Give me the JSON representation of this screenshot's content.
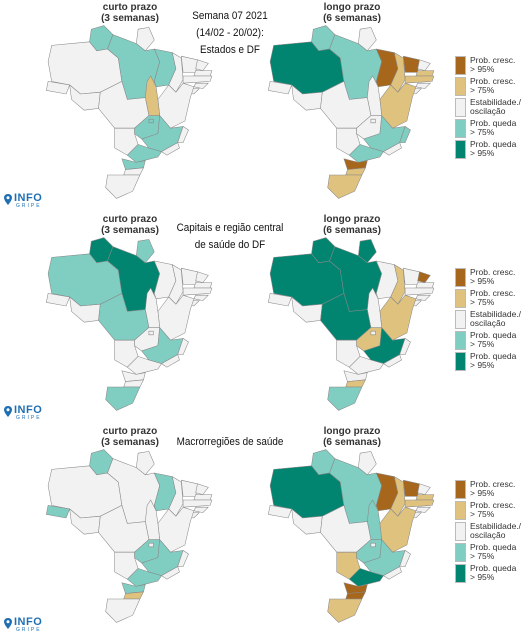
{
  "colors": {
    "inc95": "#a6661c",
    "inc75": "#e0c27f",
    "stable": "#f2f2f2",
    "dec75": "#80cdc1",
    "dec95": "#018571",
    "border": "#888888"
  },
  "map_labels": {
    "short": [
      "curto prazo",
      "(3 semanas)"
    ],
    "long": [
      "longo prazo",
      "(6 semanas)"
    ]
  },
  "panels": [
    {
      "title_lines": [
        "Semana 07 2021",
        "(14/02 - 20/02):",
        "Estados e DF"
      ]
    },
    {
      "title_lines": [
        "Capitais e região central",
        "de saúde do DF"
      ]
    },
    {
      "title_lines": [
        "Macrorregiões de saúde"
      ]
    }
  ],
  "legend": [
    {
      "key": "inc95",
      "lines": [
        "Prob. cresc.",
        "> 95%"
      ]
    },
    {
      "key": "inc75",
      "lines": [
        "Prob. cresc.",
        "> 75%"
      ]
    },
    {
      "key": "stable",
      "lines": [
        "Estabilidade./",
        "oscilação"
      ]
    },
    {
      "key": "dec75",
      "lines": [
        "Prob. queda",
        "> 75%"
      ]
    },
    {
      "key": "dec95",
      "lines": [
        "Prob. queda",
        "> 95%"
      ]
    }
  ],
  "logo": {
    "word": "INFO",
    "sub": "GRIPE"
  },
  "maps": {
    "p1_short": {
      "AM": "stable",
      "RR": "dec75",
      "AP": "stable",
      "PA": "dec75",
      "MA": "dec75",
      "PI": "stable",
      "CE": "stable",
      "RN": "stable",
      "PB": "stable",
      "PE": "stable",
      "AL": "stable",
      "SE": "stable",
      "BA": "stable",
      "TO": "inc75",
      "MT": "stable",
      "RO": "stable",
      "AC": "stable",
      "GO": "dec75",
      "DF": "dec75",
      "MS": "stable",
      "MG": "dec75",
      "ES": "stable",
      "RJ": "stable",
      "SP": "dec75",
      "PR": "dec75",
      "SC": "stable",
      "RS": "stable"
    },
    "p1_long": {
      "AM": "dec95",
      "RR": "dec75",
      "AP": "stable",
      "PA": "dec75",
      "MA": "inc95",
      "PI": "inc75",
      "CE": "inc95",
      "RN": "stable",
      "PB": "inc75",
      "PE": "inc75",
      "AL": "stable",
      "SE": "stable",
      "BA": "inc75",
      "TO": "stable",
      "MT": "stable",
      "RO": "stable",
      "AC": "stable",
      "GO": "stable",
      "DF": "stable",
      "MS": "stable",
      "MG": "dec75",
      "ES": "dec75",
      "RJ": "stable",
      "SP": "dec75",
      "PR": "inc95",
      "SC": "inc75",
      "RS": "inc75"
    },
    "p2_short": {
      "AM": "dec75",
      "RR": "dec95",
      "AP": "dec75",
      "PA": "dec95",
      "MA": "stable",
      "PI": "stable",
      "CE": "stable",
      "RN": "stable",
      "PB": "stable",
      "PE": "stable",
      "AL": "stable",
      "SE": "stable",
      "BA": "stable",
      "TO": "stable",
      "MT": "dec75",
      "RO": "stable",
      "AC": "stable",
      "GO": "stable",
      "DF": "stable",
      "MS": "stable",
      "MG": "dec75",
      "ES": "stable",
      "RJ": "stable",
      "SP": "stable",
      "PR": "stable",
      "SC": "stable",
      "RS": "dec75"
    },
    "p2_long": {
      "AM": "dec95",
      "RR": "dec95",
      "AP": "dec95",
      "PA": "dec95",
      "MA": "stable",
      "PI": "inc75",
      "CE": "stable",
      "RN": "inc95",
      "PB": "stable",
      "PE": "stable",
      "AL": "stable",
      "SE": "stable",
      "BA": "inc75",
      "TO": "stable",
      "MT": "dec95",
      "RO": "stable",
      "AC": "stable",
      "GO": "inc75",
      "DF": "stable",
      "MS": "stable",
      "MG": "dec95",
      "ES": "stable",
      "RJ": "stable",
      "SP": "stable",
      "PR": "stable",
      "SC": "inc75",
      "RS": "dec75"
    },
    "p3_short": {
      "AM": "stable",
      "RR": "dec75",
      "AP": "stable",
      "PA": "stable",
      "MA": "dec75",
      "PI": "stable",
      "CE": "stable",
      "RN": "stable",
      "PB": "stable",
      "PE": "stable",
      "AL": "stable",
      "SE": "stable",
      "BA": "stable",
      "TO": "stable",
      "MT": "stable",
      "RO": "stable",
      "AC": "dec75",
      "GO": "dec75",
      "DF": "stable",
      "MS": "stable",
      "MG": "dec75",
      "ES": "stable",
      "RJ": "stable",
      "SP": "dec75",
      "PR": "dec75",
      "SC": "inc75",
      "RS": "stable"
    },
    "p3_long": {
      "AM": "dec95",
      "RR": "dec75",
      "AP": "stable",
      "PA": "dec75",
      "MA": "inc95",
      "PI": "inc75",
      "CE": "inc95",
      "RN": "stable",
      "PB": "inc75",
      "PE": "inc75",
      "AL": "stable",
      "SE": "stable",
      "BA": "inc75",
      "TO": "dec75",
      "MT": "stable",
      "RO": "stable",
      "AC": "stable",
      "GO": "dec75",
      "DF": "stable",
      "MS": "inc75",
      "MG": "dec75",
      "ES": "stable",
      "RJ": "stable",
      "SP": "dec95",
      "PR": "inc95",
      "SC": "inc95",
      "RS": "inc75"
    }
  }
}
